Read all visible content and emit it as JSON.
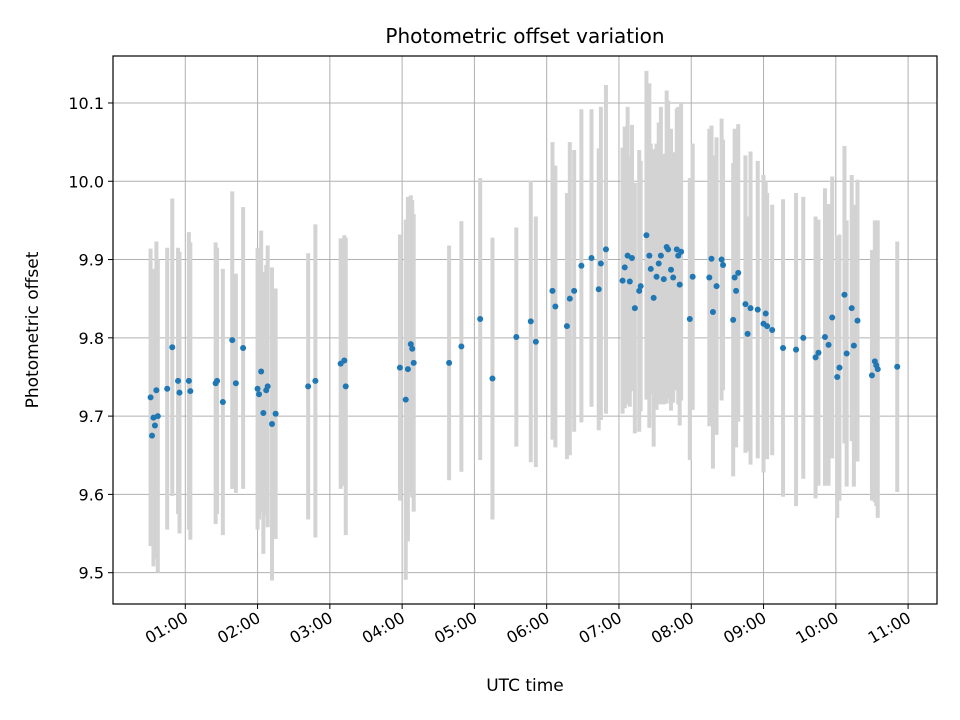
{
  "chart_data": {
    "type": "scatter",
    "title": "Photometric offset variation",
    "xlabel": "UTC time",
    "ylabel": "Photometric offset",
    "xlim": [
      0.0,
      11.4
    ],
    "ylim": [
      9.46,
      10.16
    ],
    "grid": true,
    "x_ticks": [
      {
        "value": 1,
        "label": "01:00"
      },
      {
        "value": 2,
        "label": "02:00"
      },
      {
        "value": 3,
        "label": "03:00"
      },
      {
        "value": 4,
        "label": "04:00"
      },
      {
        "value": 5,
        "label": "05:00"
      },
      {
        "value": 6,
        "label": "06:00"
      },
      {
        "value": 7,
        "label": "07:00"
      },
      {
        "value": 8,
        "label": "08:00"
      },
      {
        "value": 9,
        "label": "09:00"
      },
      {
        "value": 10,
        "label": "10:00"
      },
      {
        "value": 11,
        "label": "11:00"
      }
    ],
    "y_ticks": [
      {
        "value": 9.5,
        "label": "9.5"
      },
      {
        "value": 9.6,
        "label": "9.6"
      },
      {
        "value": 9.7,
        "label": "9.7"
      },
      {
        "value": 9.8,
        "label": "9.8"
      },
      {
        "value": 9.9,
        "label": "9.9"
      },
      {
        "value": 10.0,
        "label": "10.0"
      },
      {
        "value": 10.1,
        "label": "10.1"
      }
    ],
    "colors": {
      "marker": "#1f77b4",
      "errorbar": "#d3d3d3",
      "grid": "#b0b0b0"
    },
    "points": [
      [
        0.52,
        9.724,
        0.19
      ],
      [
        0.54,
        9.675,
        0.14
      ],
      [
        0.56,
        9.698,
        0.19
      ],
      [
        0.58,
        9.688,
        0.17
      ],
      [
        0.6,
        9.733,
        0.19
      ],
      [
        0.62,
        9.7,
        0.2
      ],
      [
        0.75,
        9.735,
        0.18
      ],
      [
        0.82,
        9.788,
        0.19
      ],
      [
        0.9,
        9.745,
        0.17
      ],
      [
        0.92,
        9.73,
        0.18
      ],
      [
        1.05,
        9.745,
        0.19
      ],
      [
        1.07,
        9.732,
        0.19
      ],
      [
        1.42,
        9.742,
        0.18
      ],
      [
        1.44,
        9.745,
        0.17
      ],
      [
        1.52,
        9.718,
        0.17
      ],
      [
        1.65,
        9.797,
        0.19
      ],
      [
        1.7,
        9.742,
        0.14
      ],
      [
        1.8,
        9.787,
        0.18
      ],
      [
        2.0,
        9.735,
        0.18
      ],
      [
        2.02,
        9.728,
        0.16
      ],
      [
        2.05,
        9.757,
        0.18
      ],
      [
        2.08,
        9.704,
        0.18
      ],
      [
        2.12,
        9.733,
        0.16
      ],
      [
        2.14,
        9.738,
        0.18
      ],
      [
        2.2,
        9.69,
        0.2
      ],
      [
        2.25,
        9.703,
        0.16
      ],
      [
        2.7,
        9.738,
        0.17
      ],
      [
        2.8,
        9.745,
        0.2
      ],
      [
        3.15,
        9.767,
        0.16
      ],
      [
        3.2,
        9.771,
        0.16
      ],
      [
        3.22,
        9.738,
        0.19
      ],
      [
        3.97,
        9.762,
        0.17
      ],
      [
        4.05,
        9.721,
        0.23
      ],
      [
        4.08,
        9.76,
        0.22
      ],
      [
        4.12,
        9.792,
        0.19
      ],
      [
        4.14,
        9.786,
        0.19
      ],
      [
        4.16,
        9.768,
        0.19
      ],
      [
        4.65,
        9.768,
        0.15
      ],
      [
        4.82,
        9.789,
        0.16
      ],
      [
        5.08,
        9.824,
        0.18
      ],
      [
        5.25,
        9.748,
        0.18
      ],
      [
        5.58,
        9.801,
        0.14
      ],
      [
        5.78,
        9.821,
        0.18
      ],
      [
        5.85,
        9.795,
        0.16
      ],
      [
        6.08,
        9.86,
        0.19
      ],
      [
        6.12,
        9.84,
        0.18
      ],
      [
        6.28,
        9.815,
        0.17
      ],
      [
        6.32,
        9.85,
        0.2
      ],
      [
        6.38,
        9.86,
        0.18
      ],
      [
        6.48,
        9.892,
        0.2
      ],
      [
        6.62,
        9.902,
        0.19
      ],
      [
        6.72,
        9.862,
        0.18
      ],
      [
        6.75,
        9.895,
        0.2
      ],
      [
        6.82,
        9.913,
        0.21
      ],
      [
        7.05,
        9.873,
        0.17
      ],
      [
        7.08,
        9.89,
        0.18
      ],
      [
        7.12,
        9.905,
        0.19
      ],
      [
        7.15,
        9.872,
        0.16
      ],
      [
        7.18,
        9.902,
        0.17
      ],
      [
        7.22,
        9.838,
        0.16
      ],
      [
        7.28,
        9.86,
        0.18
      ],
      [
        7.3,
        9.866,
        0.16
      ],
      [
        7.38,
        9.931,
        0.21
      ],
      [
        7.42,
        9.905,
        0.22
      ],
      [
        7.44,
        9.888,
        0.16
      ],
      [
        7.48,
        9.851,
        0.19
      ],
      [
        7.52,
        9.878,
        0.17
      ],
      [
        7.55,
        9.895,
        0.18
      ],
      [
        7.58,
        9.905,
        0.19
      ],
      [
        7.62,
        9.875,
        0.16
      ],
      [
        7.66,
        9.916,
        0.2
      ],
      [
        7.68,
        9.913,
        0.19
      ],
      [
        7.72,
        9.887,
        0.18
      ],
      [
        7.75,
        9.877,
        0.16
      ],
      [
        7.8,
        9.913,
        0.18
      ],
      [
        7.82,
        9.905,
        0.19
      ],
      [
        7.84,
        9.868,
        0.18
      ],
      [
        7.86,
        9.91,
        0.19
      ],
      [
        7.98,
        9.824,
        0.18
      ],
      [
        8.02,
        9.878,
        0.17
      ],
      [
        8.25,
        9.877,
        0.19
      ],
      [
        8.28,
        9.901,
        0.17
      ],
      [
        8.3,
        9.833,
        0.2
      ],
      [
        8.35,
        9.866,
        0.19
      ],
      [
        8.42,
        9.9,
        0.18
      ],
      [
        8.44,
        9.893,
        0.16
      ],
      [
        8.58,
        9.823,
        0.2
      ],
      [
        8.6,
        9.877,
        0.19
      ],
      [
        8.62,
        9.86,
        0.2
      ],
      [
        8.65,
        9.883,
        0.19
      ],
      [
        8.75,
        9.843,
        0.19
      ],
      [
        8.78,
        9.805,
        0.15
      ],
      [
        8.82,
        9.838,
        0.2
      ],
      [
        8.92,
        9.836,
        0.19
      ],
      [
        9.0,
        9.818,
        0.19
      ],
      [
        9.03,
        9.831,
        0.17
      ],
      [
        9.05,
        9.815,
        0.17
      ],
      [
        9.12,
        9.81,
        0.16
      ],
      [
        9.27,
        9.787,
        0.19
      ],
      [
        9.45,
        9.785,
        0.2
      ],
      [
        9.55,
        9.8,
        0.18
      ],
      [
        9.72,
        9.775,
        0.18
      ],
      [
        9.76,
        9.781,
        0.17
      ],
      [
        9.85,
        9.801,
        0.19
      ],
      [
        9.9,
        9.791,
        0.18
      ],
      [
        9.95,
        9.826,
        0.18
      ],
      [
        10.02,
        9.75,
        0.18
      ],
      [
        10.05,
        9.762,
        0.17
      ],
      [
        10.12,
        9.855,
        0.19
      ],
      [
        10.15,
        9.78,
        0.17
      ],
      [
        10.22,
        9.838,
        0.17
      ],
      [
        10.25,
        9.79,
        0.18
      ],
      [
        10.3,
        9.822,
        0.18
      ],
      [
        10.5,
        9.752,
        0.16
      ],
      [
        10.54,
        9.77,
        0.18
      ],
      [
        10.56,
        9.765,
        0.18
      ],
      [
        10.58,
        9.76,
        0.19
      ],
      [
        10.85,
        9.763,
        0.16
      ]
    ]
  }
}
